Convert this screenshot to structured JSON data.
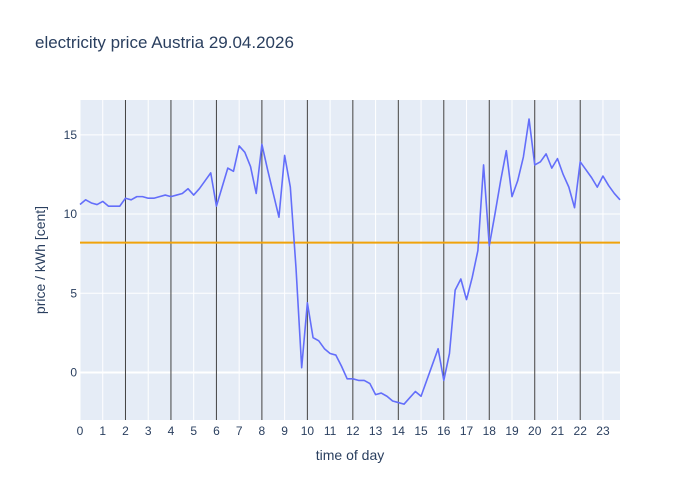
{
  "chart_data": {
    "type": "line",
    "title": "electricity price Austria 29.04.2026",
    "xlabel": "time of day",
    "ylabel": "price / kWh [cent]",
    "xlim": [
      0,
      23.75
    ],
    "ylim": [
      -3,
      17.2
    ],
    "x_ticks": [
      0,
      1,
      2,
      3,
      4,
      5,
      6,
      7,
      8,
      9,
      10,
      11,
      12,
      13,
      14,
      15,
      16,
      17,
      18,
      19,
      20,
      21,
      22,
      23
    ],
    "x_tick_labels": [
      "0",
      "1",
      "2",
      "3",
      "4",
      "5",
      "6",
      "7",
      "8",
      "9",
      "10",
      "11",
      "12",
      "13",
      "14",
      "15",
      "16",
      "17",
      "18",
      "19",
      "20",
      "21",
      "22",
      "23"
    ],
    "y_ticks": [
      0,
      5,
      10,
      15
    ],
    "y_tick_labels": [
      "0",
      "5",
      "10",
      "15"
    ],
    "grid": true,
    "background_color": "#e5ecf6",
    "vertical_lines": [
      2,
      4,
      6,
      8,
      10,
      12,
      14,
      16,
      18,
      20,
      22
    ],
    "vertical_line_color": "#000000",
    "horizontal_line": {
      "y": 8.2,
      "color": "#f0a30a"
    },
    "series": [
      {
        "color": "#636efa",
        "x": [
          0,
          0.25,
          0.5,
          0.75,
          1,
          1.25,
          1.5,
          1.75,
          2,
          2.25,
          2.5,
          2.75,
          3,
          3.25,
          3.5,
          3.75,
          4,
          4.25,
          4.5,
          4.75,
          5,
          5.25,
          5.5,
          5.75,
          6,
          6.25,
          6.5,
          6.75,
          7,
          7.25,
          7.5,
          7.75,
          8,
          8.25,
          8.5,
          8.75,
          9,
          9.25,
          9.5,
          9.75,
          10,
          10.25,
          10.5,
          10.75,
          11,
          11.25,
          11.5,
          11.75,
          12,
          12.25,
          12.5,
          12.75,
          13,
          13.25,
          13.5,
          13.75,
          14,
          14.25,
          14.5,
          14.75,
          15,
          15.25,
          15.5,
          15.75,
          16,
          16.25,
          16.5,
          16.75,
          17,
          17.25,
          17.5,
          17.75,
          18,
          18.25,
          18.5,
          18.75,
          19,
          19.25,
          19.5,
          19.75,
          20,
          20.25,
          20.5,
          20.75,
          21,
          21.25,
          21.5,
          21.75,
          22,
          22.25,
          22.5,
          22.75,
          23,
          23.25,
          23.5,
          23.75
        ],
        "values": [
          10.6,
          10.9,
          10.7,
          10.6,
          10.8,
          10.5,
          10.5,
          10.5,
          11.0,
          10.9,
          11.1,
          11.1,
          11.0,
          11.0,
          11.1,
          11.2,
          11.1,
          11.2,
          11.3,
          11.6,
          11.2,
          11.6,
          12.1,
          12.6,
          10.5,
          11.7,
          12.9,
          12.7,
          14.3,
          13.9,
          13.0,
          11.3,
          14.4,
          12.8,
          11.3,
          9.8,
          13.7,
          11.7,
          6.6,
          0.3,
          4.4,
          2.2,
          2.0,
          1.5,
          1.2,
          1.1,
          0.4,
          -0.4,
          -0.4,
          -0.5,
          -0.5,
          -0.7,
          -1.4,
          -1.3,
          -1.5,
          -1.8,
          -1.9,
          -2.0,
          -1.6,
          -1.2,
          -1.5,
          -0.5,
          0.5,
          1.5,
          -0.5,
          1.2,
          5.2,
          5.9,
          4.6,
          6.0,
          7.7,
          13.1,
          8.0,
          10.0,
          12.1,
          14.0,
          11.1,
          12.1,
          13.6,
          16.0,
          13.1,
          13.3,
          13.8,
          12.9,
          13.5,
          12.5,
          11.7,
          10.4,
          13.3,
          12.8,
          12.3,
          11.7,
          12.4,
          11.8,
          11.3,
          10.9
        ]
      }
    ]
  }
}
